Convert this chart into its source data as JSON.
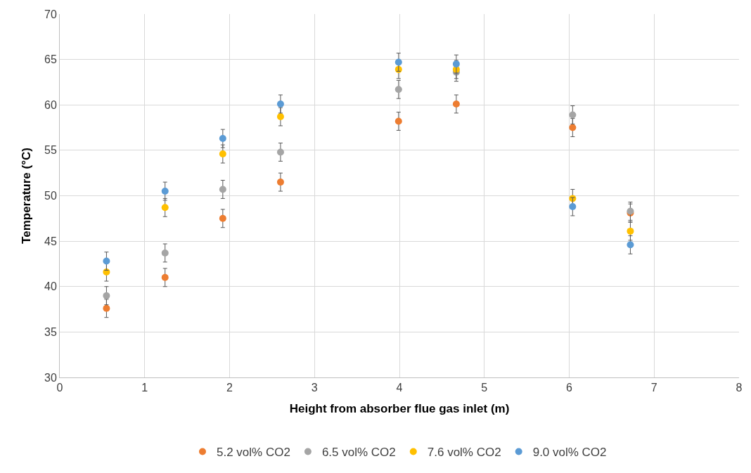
{
  "chart_data": {
    "type": "scatter",
    "xlabel": "Height from absorber flue gas inlet (m)",
    "ylabel": "Temperature (°C)",
    "x": [
      0.55,
      1.24,
      1.92,
      2.6,
      3.99,
      4.67,
      6.04,
      6.72
    ],
    "xlim": [
      0,
      8
    ],
    "xticks": [
      0,
      1,
      2,
      3,
      4,
      5,
      6,
      7,
      8
    ],
    "ylim": [
      30,
      70
    ],
    "yticks": [
      30,
      35,
      40,
      45,
      50,
      55,
      60,
      65,
      70
    ],
    "grid": true,
    "legend": "bottom",
    "marker": "circle",
    "series": [
      {
        "name": "5.2 vol% CO2",
        "color": "#ed7d31",
        "values": [
          37.6,
          41.0,
          47.5,
          51.5,
          58.2,
          60.1,
          57.5,
          48.1
        ],
        "errors": [
          1,
          1,
          1,
          1,
          1,
          1,
          1,
          1
        ]
      },
      {
        "name": "6.5 vol% CO2",
        "color": "#a5a5a5",
        "values": [
          39.0,
          43.7,
          50.7,
          54.8,
          61.7,
          63.6,
          58.9,
          48.3
        ],
        "errors": [
          1,
          1,
          1,
          1,
          1,
          1,
          1,
          1
        ]
      },
      {
        "name": "7.6 vol% CO2",
        "color": "#ffc000",
        "values": [
          41.6,
          48.7,
          54.6,
          58.7,
          63.9,
          63.9,
          49.7,
          46.1
        ],
        "errors": [
          1,
          1,
          1,
          1,
          1,
          1,
          1,
          1
        ]
      },
      {
        "name": "9.0 vol% CO2",
        "color": "#5b9bd5",
        "values": [
          42.8,
          50.5,
          56.3,
          60.1,
          64.7,
          64.5,
          48.8,
          44.6
        ],
        "errors": [
          1,
          1,
          1,
          1,
          1,
          1,
          1,
          1
        ]
      }
    ]
  }
}
